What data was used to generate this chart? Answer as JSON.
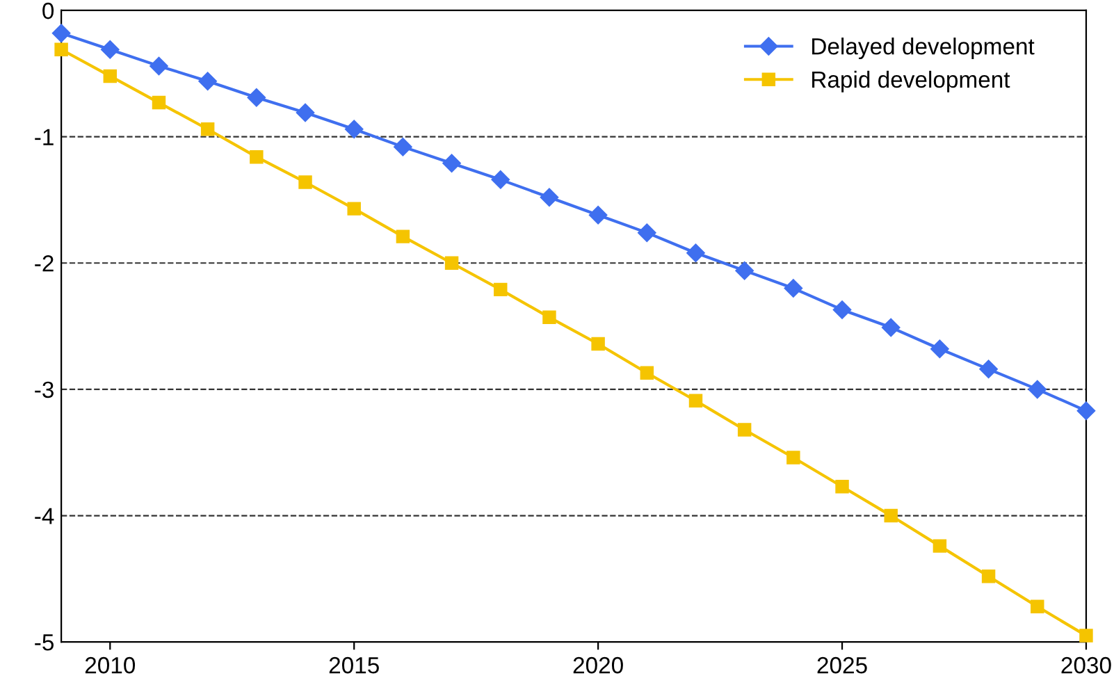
{
  "chart_data": {
    "type": "line",
    "x": [
      2009,
      2010,
      2011,
      2012,
      2013,
      2014,
      2015,
      2016,
      2017,
      2018,
      2019,
      2020,
      2021,
      2022,
      2023,
      2024,
      2025,
      2026,
      2027,
      2028,
      2029,
      2030
    ],
    "series": [
      {
        "name": "Delayed development",
        "color": "#3f6fef",
        "marker": "diamond",
        "values": [
          -0.18,
          -0.31,
          -0.44,
          -0.56,
          -0.69,
          -0.81,
          -0.94,
          -1.08,
          -1.21,
          -1.34,
          -1.48,
          -1.62,
          -1.76,
          -1.92,
          -2.06,
          -2.2,
          -2.37,
          -2.51,
          -2.68,
          -2.84,
          -3.0,
          -3.17
        ]
      },
      {
        "name": "Rapid development",
        "color": "#f5c400",
        "marker": "square",
        "values": [
          -0.31,
          -0.52,
          -0.73,
          -0.94,
          -1.16,
          -1.36,
          -1.57,
          -1.79,
          -2.0,
          -2.21,
          -2.43,
          -2.64,
          -2.87,
          -3.09,
          -3.32,
          -3.54,
          -3.77,
          -4.0,
          -4.24,
          -4.48,
          -4.72,
          -4.95
        ]
      }
    ],
    "xlim": [
      2009,
      2030
    ],
    "xticks": [
      2010,
      2015,
      2020,
      2025,
      2030
    ],
    "ylim": [
      -5,
      0
    ],
    "yticks": [
      0,
      -1,
      -2,
      -3,
      -4,
      -5
    ],
    "grid": "y",
    "line_style": "solid",
    "legend": "top right"
  }
}
